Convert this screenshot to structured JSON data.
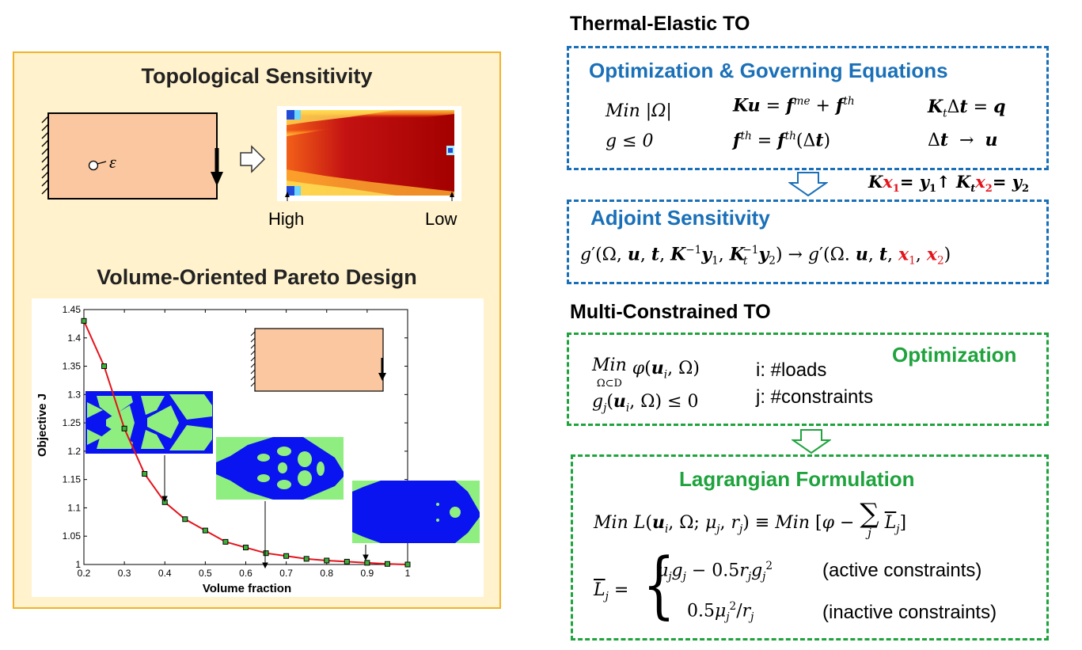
{
  "left_panel": {
    "title_top": "Topological Sensitivity",
    "epsilon_label": "ε",
    "high_label": "High",
    "low_label": "Low",
    "title_bottom": "Volume-Oriented Pareto Design"
  },
  "thermal": {
    "section_title": "Thermal-Elastic TO",
    "box1_title": "Optimization & Governing Equations",
    "box2_title": "Adjoint Sensitivity",
    "eq_min": "Min |Ω|",
    "eq_g": "g ≤ 0"
  },
  "multi": {
    "section_title": "Multi-Constrained TO",
    "box1_title": "Optimization",
    "box2_title": "Lagrangian Formulation",
    "loads_label": "i: #loads",
    "constraints_label": "j: #constraints",
    "active_label": "(active constraints)",
    "inactive_label": "(inactive constraints)"
  },
  "colors": {
    "blue": "#1a70b8",
    "green": "#1fa33d",
    "red": "#e4131b",
    "panel_bg": "#fff2cc",
    "panel_border": "#f0b22a",
    "beam_fill": "#fac7a0",
    "design_solid": "#0a14f0",
    "design_void": "#8fee80"
  },
  "chart_data": {
    "type": "line",
    "xlabel": "Volume fraction",
    "ylabel": "Objective J",
    "xlim": [
      0.2,
      1
    ],
    "ylim": [
      1,
      1.45
    ],
    "xticks": [
      "0.2",
      "0.3",
      "0.4",
      "0.5",
      "0.6",
      "0.7",
      "0.8",
      "0.9",
      "1"
    ],
    "yticks": [
      "1",
      "1.05",
      "1.1",
      "1.15",
      "1.2",
      "1.25",
      "1.3",
      "1.35",
      "1.4",
      "1.45"
    ],
    "x": [
      0.2,
      0.25,
      0.3,
      0.35,
      0.4,
      0.45,
      0.5,
      0.55,
      0.6,
      0.65,
      0.7,
      0.75,
      0.8,
      0.85,
      0.9,
      0.95,
      1.0
    ],
    "y": [
      1.43,
      1.35,
      1.24,
      1.16,
      1.11,
      1.08,
      1.06,
      1.04,
      1.03,
      1.02,
      1.015,
      1.01,
      1.007,
      1.005,
      1.003,
      1.001,
      1.0
    ],
    "grid": false
  }
}
